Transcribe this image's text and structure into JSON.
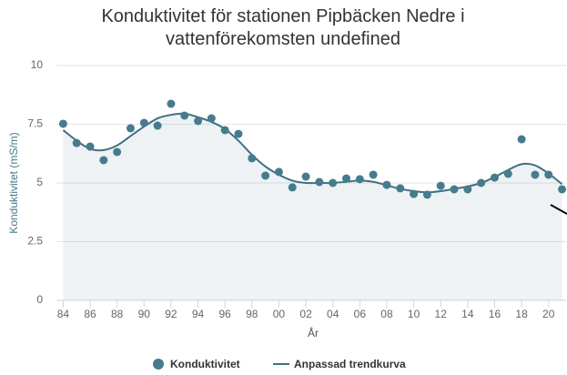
{
  "chart_data": {
    "type": "scatter_trend",
    "title": "Konduktivitet för stationen Pipbäcken Nedre i vattenförekomsten undefined",
    "x_label": "År",
    "y_label": "Konduktivitet (mS/m)",
    "x": [
      1984,
      1985,
      1986,
      1987,
      1988,
      1989,
      1990,
      1991,
      1992,
      1993,
      1994,
      1995,
      1996,
      1997,
      1998,
      1999,
      2000,
      2001,
      2002,
      2003,
      2004,
      2005,
      2006,
      2007,
      2008,
      2009,
      2010,
      2011,
      2012,
      2013,
      2014,
      2015,
      2016,
      2017,
      2018,
      2019,
      2020,
      2021
    ],
    "series": [
      {
        "name": "Konduktivitet",
        "color": "#467b8d",
        "values": [
          7.52,
          6.7,
          6.55,
          5.97,
          6.32,
          7.33,
          7.56,
          7.44,
          8.37,
          7.87,
          7.64,
          7.75,
          7.25,
          7.09,
          6.05,
          5.31,
          5.47,
          4.81,
          5.27,
          5.04,
          5.0,
          5.19,
          5.16,
          5.35,
          4.92,
          4.77,
          4.53,
          4.5,
          4.88,
          4.73,
          4.73,
          5.0,
          5.23,
          5.39,
          6.86,
          5.35,
          5.35,
          4.73
        ]
      },
      {
        "name": "Anpassad trendkurva",
        "color": "#3f6f84",
        "values": [
          7.25,
          6.8,
          6.45,
          6.4,
          6.6,
          7.0,
          7.4,
          7.75,
          7.9,
          7.95,
          7.8,
          7.6,
          7.3,
          6.8,
          6.2,
          5.7,
          5.35,
          5.1,
          5.0,
          5.0,
          5.0,
          5.05,
          5.1,
          5.05,
          4.9,
          4.75,
          4.65,
          4.6,
          4.65,
          4.75,
          4.85,
          5.0,
          5.25,
          5.55,
          5.8,
          5.75,
          5.4,
          4.95
        ]
      }
    ],
    "xlim": [
      1983.5,
      2021.3
    ],
    "xticks": [
      {
        "value": 1984,
        "label": "84"
      },
      {
        "value": 1986,
        "label": "86"
      },
      {
        "value": 1988,
        "label": "88"
      },
      {
        "value": 1990,
        "label": "90"
      },
      {
        "value": 1992,
        "label": "92"
      },
      {
        "value": 1994,
        "label": "94"
      },
      {
        "value": 1996,
        "label": "96"
      },
      {
        "value": 1998,
        "label": "98"
      },
      {
        "value": 2000,
        "label": "00"
      },
      {
        "value": 2002,
        "label": "02"
      },
      {
        "value": 2004,
        "label": "04"
      },
      {
        "value": 2006,
        "label": "06"
      },
      {
        "value": 2008,
        "label": "08"
      },
      {
        "value": 2010,
        "label": "10"
      },
      {
        "value": 2012,
        "label": "12"
      },
      {
        "value": 2014,
        "label": "14"
      },
      {
        "value": 2016,
        "label": "16"
      },
      {
        "value": 2018,
        "label": "18"
      },
      {
        "value": 2020,
        "label": "20"
      }
    ],
    "ylim": [
      0,
      10
    ],
    "yticks": [
      0,
      2.5,
      5,
      7.5,
      10
    ],
    "grid": true,
    "legend": "bottom"
  }
}
